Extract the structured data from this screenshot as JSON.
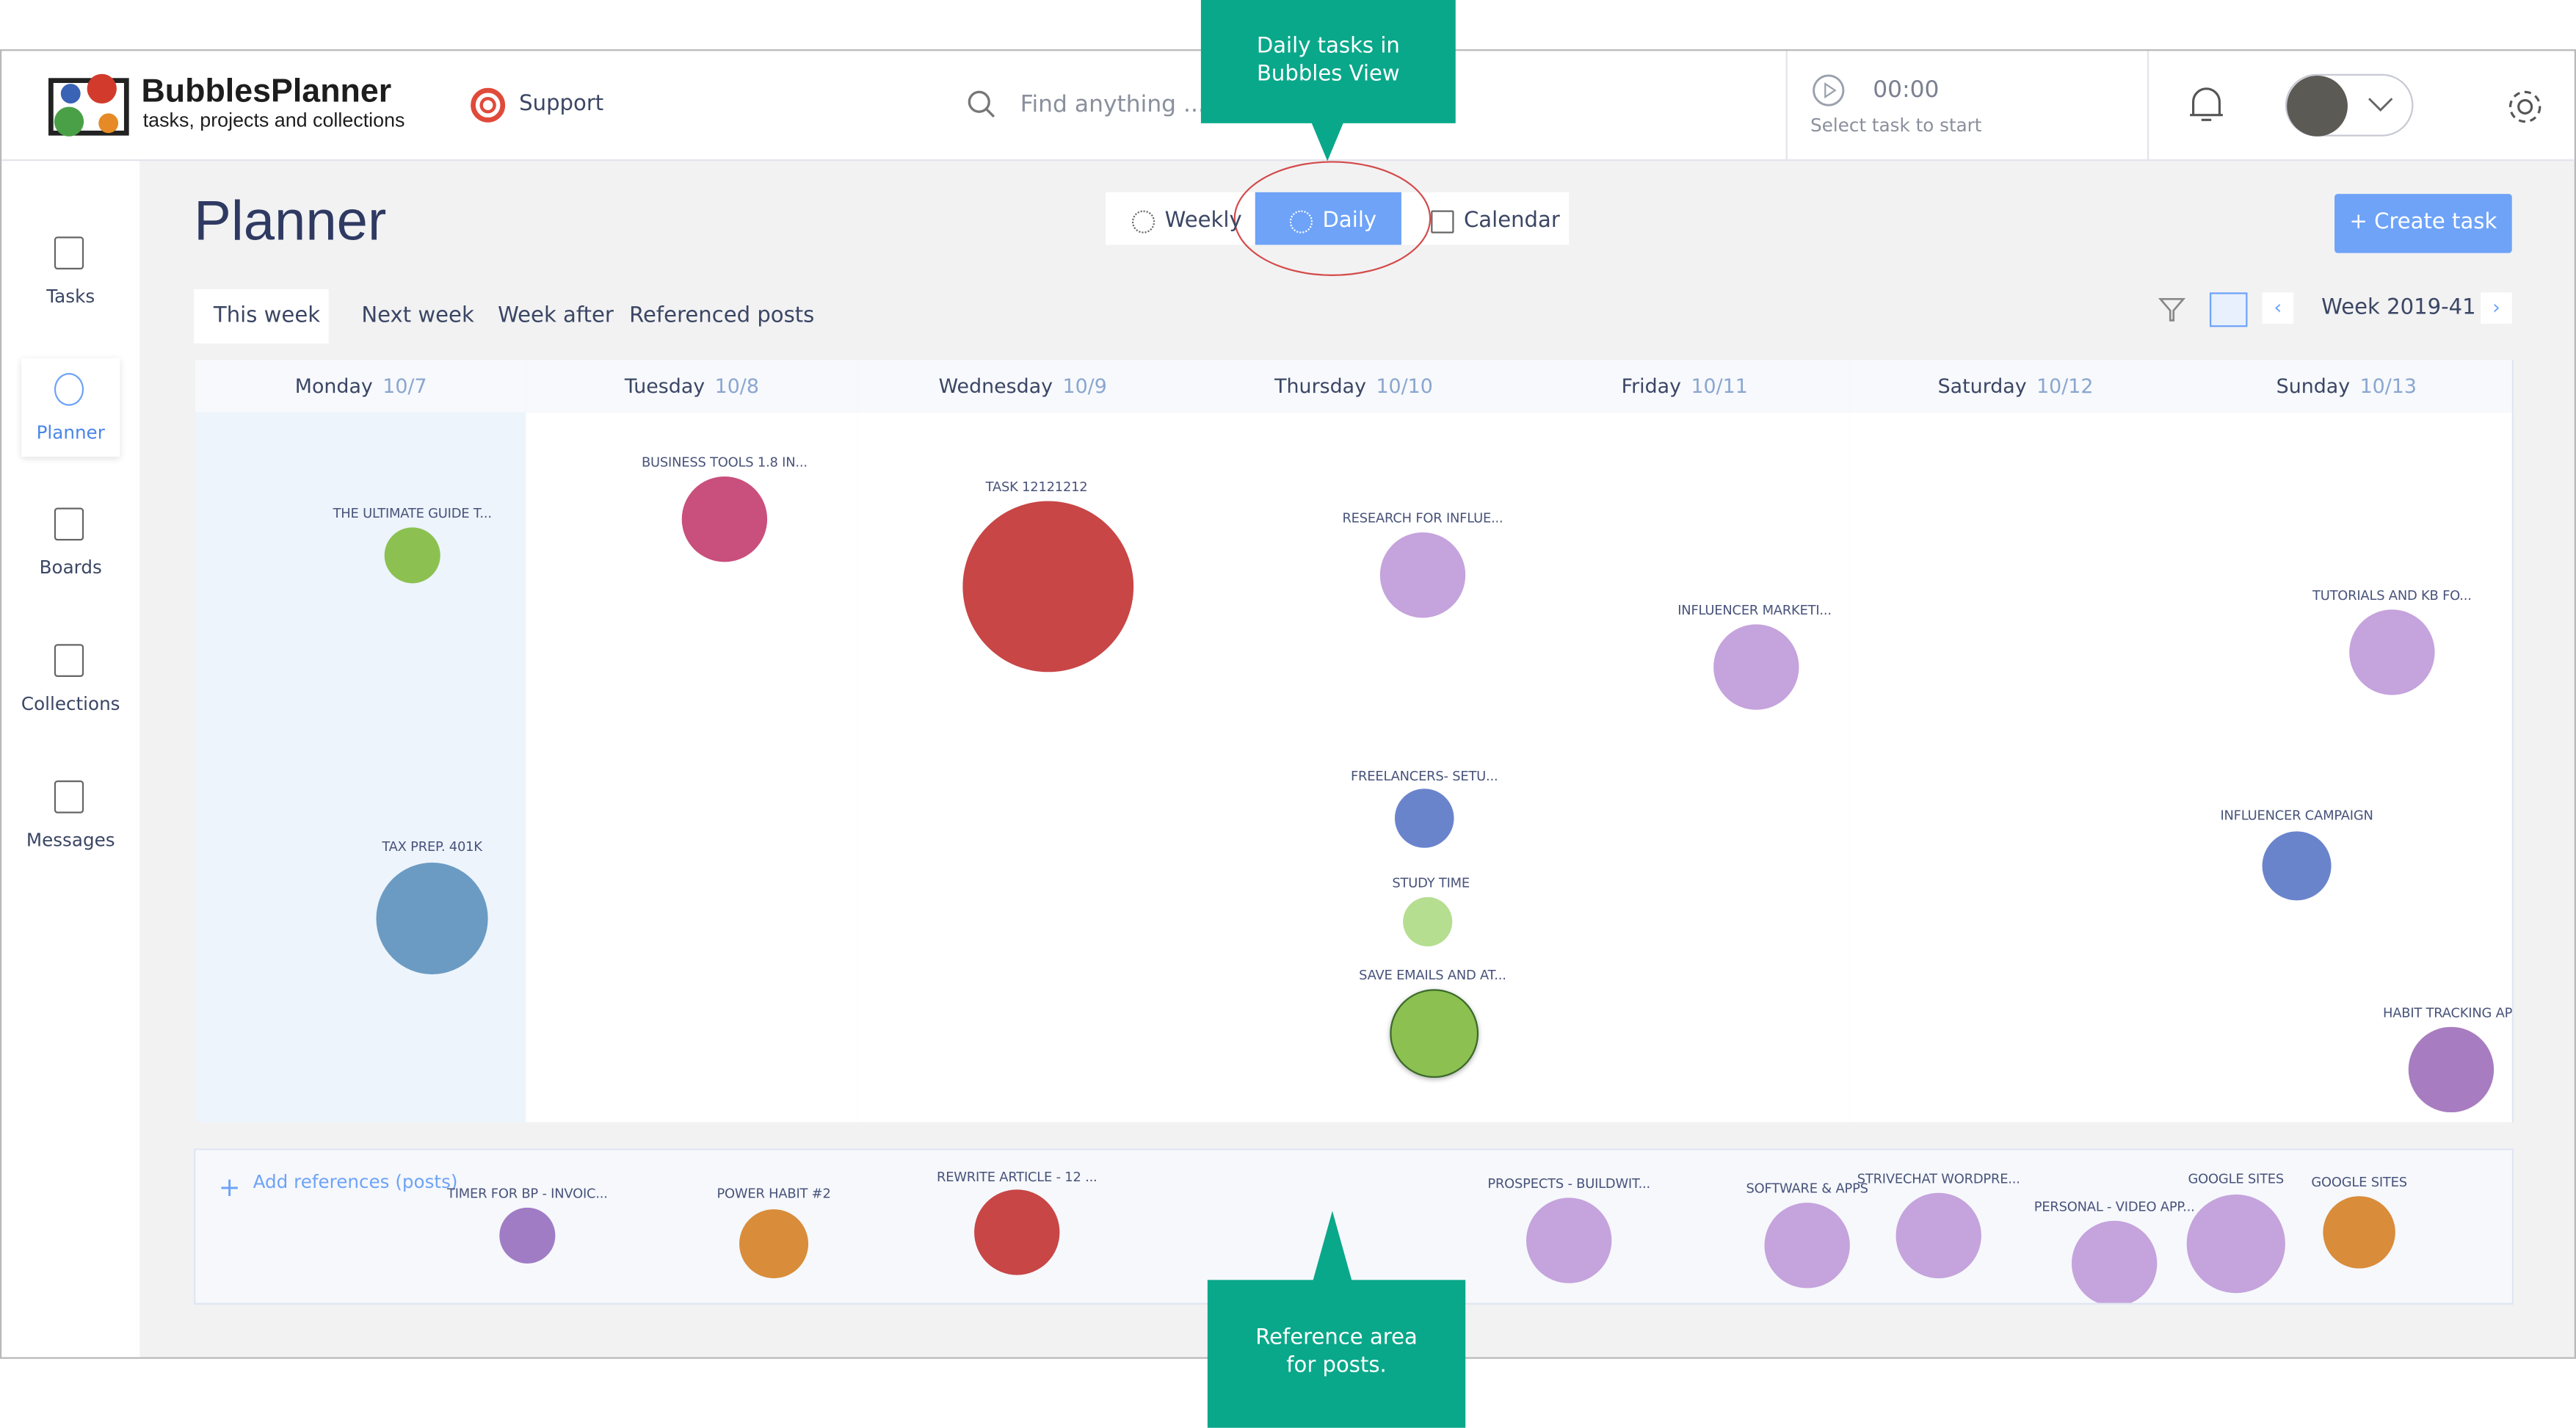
{
  "header": {
    "brand": "BubblesPlanner",
    "tagline": "tasks, projects and collections",
    "support": "Support",
    "search_placeholder": "Find anything ...",
    "timer": "00:00",
    "timer_hint": "Select task to start"
  },
  "sidebar": [
    "Tasks",
    "Planner",
    "Boards",
    "Collections",
    "Messages"
  ],
  "page": {
    "title": "Planner",
    "views": [
      "Weekly",
      "Daily",
      "Calendar"
    ],
    "create_button": "+ Create task",
    "tabs": [
      "This week",
      "Next week",
      "Week after",
      "Referenced posts"
    ],
    "week": "Week 2019-41"
  },
  "days": [
    {
      "name": "Monday",
      "date": "10/7",
      "tasks": [
        "THE ULTIMATE GUIDE T...",
        "TAX PREP. 401K"
      ]
    },
    {
      "name": "Tuesday",
      "date": "10/8",
      "tasks": [
        "BUSINESS TOOLS 1.8 IN..."
      ]
    },
    {
      "name": "Wednesday",
      "date": "10/9",
      "tasks": [
        "TASK 12121212"
      ]
    },
    {
      "name": "Thursday",
      "date": "10/10",
      "tasks": [
        "RESEARCH FOR INFLUE...",
        "FREELANCERS- SETU...",
        "STUDY TIME",
        "SAVE EMAILS AND AT..."
      ]
    },
    {
      "name": "Friday",
      "date": "10/11",
      "tasks": [
        "INFLUENCER MARKETI..."
      ]
    },
    {
      "name": "Saturday",
      "date": "10/12",
      "tasks": []
    },
    {
      "name": "Sunday",
      "date": "10/13",
      "tasks": [
        "TUTORIALS AND KB FO...",
        "INFLUENCER CAMPAIGN",
        "HABIT TRACKING API"
      ]
    }
  ],
  "references": {
    "add": "Add references (posts)",
    "posts": [
      "TIMER FOR BP - INVOIC...",
      "POWER HABIT #2",
      "REWRITE ARTICLE - 12 ...",
      "PROSPECTS - BUILDWIT...",
      "SOFTWARE & APPS",
      "STRIVECHAT WORDPRE...",
      "PERSONAL - VIDEO APP...",
      "GOOGLE SITES",
      "GOOGLE SITES"
    ]
  },
  "callouts": {
    "daily": "Daily tasks in Bubbles View",
    "reference": "Reference area for posts."
  }
}
